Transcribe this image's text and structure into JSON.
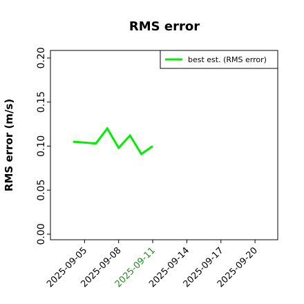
{
  "chart_data": {
    "type": "line",
    "title": "RMS error",
    "ylabel": "RMS error (m/s)",
    "x": [
      "2025-09-04",
      "2025-09-05",
      "2025-09-06",
      "2025-09-07",
      "2025-09-08",
      "2025-09-09",
      "2025-09-10",
      "2025-09-11"
    ],
    "series": [
      {
        "name": "best est. (RMS error)",
        "color": "#00ee00",
        "values": [
          0.105,
          0.104,
          0.103,
          0.12,
          0.098,
          0.112,
          0.091,
          0.1
        ]
      }
    ],
    "xlim": [
      "2025-09-02",
      "2025-09-22"
    ],
    "xticks": [
      "2025-09-05",
      "2025-09-08",
      "2025-09-11",
      "2025-09-14",
      "2025-09-17",
      "2025-09-20"
    ],
    "xtick_colors": [
      "#000000",
      "#000000",
      "#228b22",
      "#000000",
      "#000000",
      "#000000"
    ],
    "ylim": [
      -0.0063,
      0.2086
    ],
    "yticks": [
      {
        "value": 0,
        "label": "0.00"
      },
      {
        "value": 0.05,
        "label": "0.05"
      },
      {
        "value": 0.1,
        "label": "0.10"
      },
      {
        "value": 0.15,
        "label": "0.15"
      },
      {
        "value": 0.2,
        "label": "0.20"
      }
    ],
    "grid": false,
    "legend": "upper right"
  }
}
